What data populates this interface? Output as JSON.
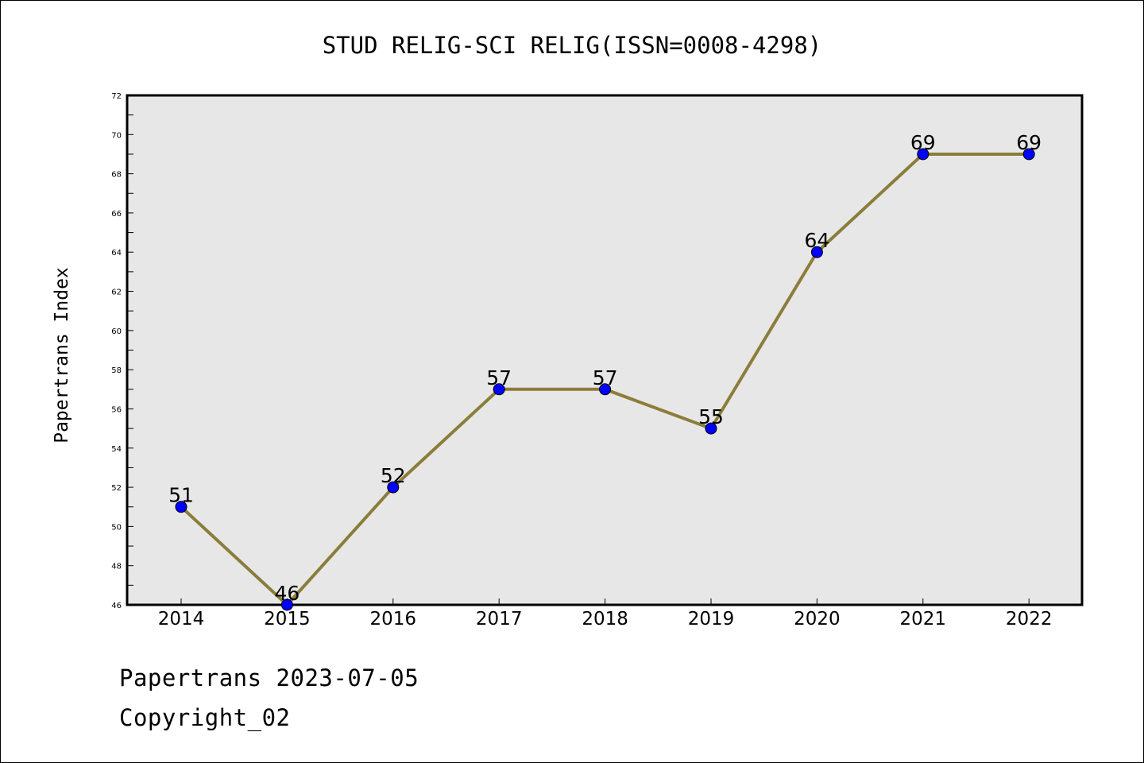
{
  "chart_data": {
    "type": "line",
    "title": "STUD RELIG-SCI RELIG(ISSN=0008-4298)",
    "xlabel": "",
    "ylabel": "Papertrans Index",
    "x": [
      "2014",
      "2015",
      "2016",
      "2017",
      "2018",
      "2019",
      "2020",
      "2021",
      "2022"
    ],
    "series": [
      {
        "values": [
          51,
          46,
          52,
          57,
          57,
          55,
          64,
          69,
          69
        ]
      }
    ],
    "ylim": [
      46,
      72
    ],
    "yticks": [
      46,
      48,
      50,
      52,
      54,
      56,
      58,
      60,
      62,
      64,
      66,
      68,
      70,
      72
    ],
    "grid": false,
    "data_labels": true,
    "colors": {
      "line": "#8B7D3A",
      "marker": "#0000FF",
      "plot_background": "#E7E7E7"
    }
  },
  "footer": {
    "line1": "Papertrans 2023-07-05",
    "line2": "Copyright_02"
  }
}
